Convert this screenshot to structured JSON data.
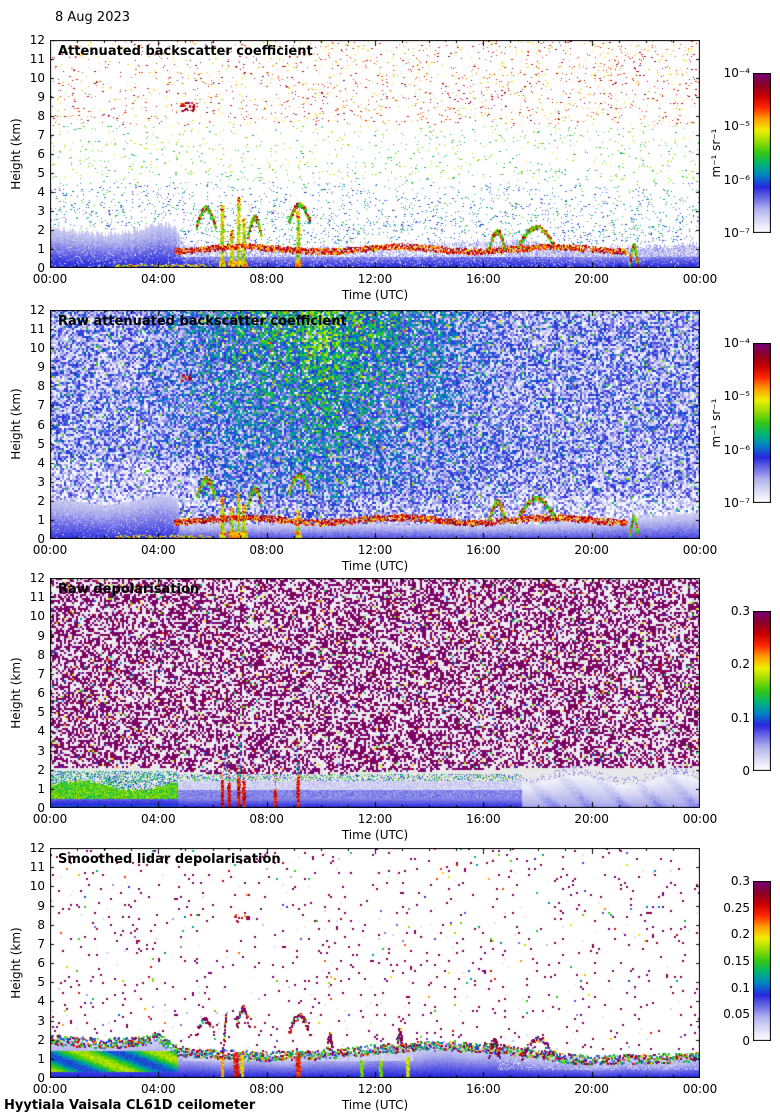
{
  "page": {
    "date": "8 Aug 2023",
    "footer": "Hyytiala Vaisala CL61D ceilometer"
  },
  "colors": {
    "colormap": [
      "#ffffff",
      "#dcdcf5",
      "#b4b4ee",
      "#6e6ee6",
      "#2828dc",
      "#0080c8",
      "#00b478",
      "#32c814",
      "#96dc00",
      "#f0f000",
      "#ffa000",
      "#ff2800",
      "#c80000",
      "#8c0028",
      "#780078"
    ],
    "axis": "#000000",
    "panel3_background": "#e8e8e8",
    "noise_purple": "#780078"
  },
  "chart_data": [
    {
      "type": "heatmap",
      "title": "Attenuated backscatter coefficient",
      "xlabel": "Time (UTC)",
      "ylabel": "Height (km)",
      "x_ticks": [
        "00:00",
        "04:00",
        "08:00",
        "12:00",
        "16:00",
        "20:00",
        "00:00"
      ],
      "x_range_hours": [
        0,
        24
      ],
      "y_ticks": [
        "12",
        "11",
        "10",
        "9",
        "8",
        "7",
        "6",
        "5",
        "4",
        "3",
        "2",
        "1",
        "0"
      ],
      "y_range_km": [
        0,
        12
      ],
      "colorbar": {
        "scale": "log",
        "unit": "m⁻¹ sr⁻¹",
        "tick_labels": [
          "10⁻⁴",
          "10⁻⁵",
          "10⁻⁶",
          "10⁻⁷"
        ],
        "min": "10⁻⁷",
        "max": "10⁻⁴"
      },
      "render_style": "sparse_backscatter",
      "features": {
        "boundary_layer_top_km": [
          [
            0,
            2.1
          ],
          [
            1,
            1.9
          ],
          [
            2,
            1.75
          ],
          [
            3,
            1.9
          ],
          [
            4,
            2.3
          ],
          [
            4.6,
            2.2
          ],
          [
            5,
            1.15
          ],
          [
            7,
            1.0
          ],
          [
            9,
            1.0
          ],
          [
            11,
            1.05
          ],
          [
            13,
            1.2
          ],
          [
            15,
            1.35
          ],
          [
            17,
            1.45
          ],
          [
            18,
            1.3
          ],
          [
            19,
            1.15
          ],
          [
            20,
            1.0
          ],
          [
            22,
            1.1
          ],
          [
            24,
            1.25
          ]
        ],
        "aerosol_layer": {
          "km": 1.0,
          "start_h": 4.6,
          "end_h": 21.3
        },
        "precip_streaks": [
          {
            "h": 6.35,
            "top_km": 3.3
          },
          {
            "h": 6.7,
            "top_km": 2.0
          },
          {
            "h": 6.95,
            "top_km": 3.7
          },
          {
            "h": 7.15,
            "top_km": 2.6
          },
          {
            "h": 9.15,
            "top_km": 3.0
          }
        ],
        "cloud_bands": [
          {
            "h0": 5.4,
            "h1": 6.1,
            "km": 3.1
          },
          {
            "h0": 7.3,
            "h1": 7.8,
            "km": 2.6
          },
          {
            "h0": 8.8,
            "h1": 9.6,
            "km": 3.3
          },
          {
            "h0": 16.2,
            "h1": 16.8,
            "km": 1.9
          },
          {
            "h0": 17.3,
            "h1": 18.6,
            "km": 2.1
          },
          {
            "h0": 21.4,
            "h1": 21.7,
            "km": 1.1
          }
        ],
        "cirrus_spot": {
          "h": 5.05,
          "km": 8.5
        }
      }
    },
    {
      "type": "heatmap",
      "title": "Raw attenuated backscatter coefficient",
      "xlabel": "Time (UTC)",
      "ylabel": "Height (km)",
      "x_ticks": [
        "00:00",
        "04:00",
        "08:00",
        "12:00",
        "16:00",
        "20:00",
        "00:00"
      ],
      "x_range_hours": [
        0,
        24
      ],
      "y_ticks": [
        "12",
        "11",
        "10",
        "9",
        "8",
        "7",
        "6",
        "5",
        "4",
        "3",
        "2",
        "1",
        "0"
      ],
      "y_range_km": [
        0,
        12
      ],
      "colorbar": {
        "scale": "log",
        "unit": "m⁻¹ sr⁻¹",
        "tick_labels": [
          "10⁻⁴",
          "10⁻⁵",
          "10⁻⁶",
          "10⁻⁷"
        ],
        "min": "10⁻⁷",
        "max": "10⁻⁴"
      },
      "render_style": "noisy_backscatter",
      "features": {
        "boundary_layer_top_km": [
          [
            0,
            2.1
          ],
          [
            1,
            1.9
          ],
          [
            2,
            1.75
          ],
          [
            3,
            1.9
          ],
          [
            4,
            2.3
          ],
          [
            4.6,
            2.2
          ],
          [
            5,
            1.15
          ],
          [
            7,
            1.0
          ],
          [
            9,
            1.0
          ],
          [
            11,
            1.05
          ],
          [
            13,
            1.2
          ],
          [
            15,
            1.35
          ],
          [
            17,
            1.45
          ],
          [
            18,
            1.3
          ],
          [
            19,
            1.15
          ],
          [
            20,
            1.0
          ],
          [
            22,
            1.1
          ],
          [
            24,
            1.25
          ]
        ],
        "ground_top_km": [
          [
            4.75,
            0.75
          ],
          [
            12,
            0.8
          ],
          [
            16,
            0.7
          ],
          [
            20,
            0.85
          ],
          [
            21.5,
            1.05
          ],
          [
            24,
            1.35
          ]
        ],
        "aerosol_layer": {
          "km": 1.0,
          "start_h": 4.6,
          "end_h": 21.3
        },
        "precip_streaks": [
          {
            "h": 6.35,
            "top_km": 2.2
          },
          {
            "h": 6.7,
            "top_km": 1.6
          },
          {
            "h": 6.95,
            "top_km": 2.4
          },
          {
            "h": 7.15,
            "top_km": 1.8
          },
          {
            "h": 9.15,
            "top_km": 1.5
          }
        ],
        "cloud_bands": [
          {
            "h0": 5.4,
            "h1": 6.1,
            "km": 3.1
          },
          {
            "h0": 7.3,
            "h1": 7.8,
            "km": 2.6
          },
          {
            "h0": 8.8,
            "h1": 9.6,
            "km": 3.3
          },
          {
            "h0": 16.2,
            "h1": 16.8,
            "km": 1.9
          },
          {
            "h0": 17.3,
            "h1": 18.6,
            "km": 2.1
          },
          {
            "h0": 21.4,
            "h1": 21.7,
            "km": 1.1
          }
        ],
        "cirrus_spot": {
          "h": 5.05,
          "km": 8.5
        }
      }
    },
    {
      "type": "heatmap",
      "title": "Raw depolarisation",
      "xlabel": "Time (UTC)",
      "ylabel": "Height (km)",
      "x_ticks": [
        "00:00",
        "04:00",
        "08:00",
        "12:00",
        "16:00",
        "20:00",
        "00:00"
      ],
      "x_range_hours": [
        0,
        24
      ],
      "y_ticks": [
        "12",
        "11",
        "10",
        "9",
        "8",
        "7",
        "6",
        "5",
        "4",
        "3",
        "2",
        "1",
        "0"
      ],
      "y_range_km": [
        0,
        12
      ],
      "colorbar": {
        "scale": "linear",
        "unit": "",
        "tick_labels": [
          "0.3",
          "0.2",
          "0.1",
          "0"
        ],
        "min": "0",
        "max": "0.3"
      },
      "render_style": "raw_depol",
      "features": {
        "surface_top_km": [
          [
            0,
            1.8
          ],
          [
            4,
            1.9
          ],
          [
            5,
            1.6
          ],
          [
            8,
            1.5
          ],
          [
            12,
            1.6
          ],
          [
            17,
            1.8
          ],
          [
            20,
            1.9
          ],
          [
            24,
            1.8
          ]
        ],
        "green_band_end_h": 4.7,
        "white_band_h": [
          4.7,
          17.4
        ],
        "smooth_start_h": 17.4,
        "red_streaks": [
          {
            "h": 6.35,
            "top_km": 1.45
          },
          {
            "h": 6.6,
            "top_km": 1.3
          },
          {
            "h": 6.95,
            "top_km": 1.55
          },
          {
            "h": 7.15,
            "top_km": 1.4
          },
          {
            "h": 8.3,
            "top_km": 0.9
          },
          {
            "h": 9.15,
            "top_km": 1.6
          }
        ]
      }
    },
    {
      "type": "heatmap",
      "title": "Smoothed lidar depolarisation",
      "xlabel": "Time (UTC)",
      "ylabel": "Height (km)",
      "x_ticks": [
        "00:00",
        "04:00",
        "08:00",
        "12:00",
        "16:00",
        "20:00",
        "00:00"
      ],
      "x_range_hours": [
        0,
        24
      ],
      "y_ticks": [
        "12",
        "11",
        "10",
        "9",
        "8",
        "7",
        "6",
        "5",
        "4",
        "3",
        "2",
        "1",
        "0"
      ],
      "y_range_km": [
        0,
        12
      ],
      "colorbar": {
        "scale": "linear",
        "unit": "",
        "tick_labels": [
          "0.3",
          "0.25",
          "0.2",
          "0.15",
          "0.1",
          "0.05",
          "0"
        ],
        "min": "0",
        "max": "0.3"
      },
      "render_style": "smooth_depol",
      "features": {
        "layer_top_km": [
          [
            0,
            2.0
          ],
          [
            1,
            1.9
          ],
          [
            2,
            1.8
          ],
          [
            3,
            1.9
          ],
          [
            4,
            2.1
          ],
          [
            4.8,
            1.35
          ],
          [
            6,
            1.25
          ],
          [
            8,
            1.15
          ],
          [
            10,
            1.25
          ],
          [
            12,
            1.5
          ],
          [
            13,
            1.6
          ],
          [
            14,
            1.7
          ],
          [
            16,
            1.6
          ],
          [
            18,
            1.3
          ],
          [
            19,
            1.05
          ],
          [
            20,
            0.95
          ],
          [
            22,
            1.0
          ],
          [
            24,
            1.1
          ]
        ],
        "green_band_end_h": 4.7,
        "lavender_band": {
          "h0": 4.9,
          "h1": 13.4,
          "km0": 0.92,
          "km1": 1.48
        },
        "cloud_outlines": [
          {
            "h0": 5.35,
            "h1": 6.1,
            "km": 3.0
          },
          {
            "h0": 6.35,
            "h1": 6.5,
            "km": 3.5,
            "kind": "column"
          },
          {
            "h0": 6.9,
            "h1": 7.35,
            "km": 3.6
          },
          {
            "h0": 8.8,
            "h1": 9.6,
            "km": 3.2
          },
          {
            "h0": 10.2,
            "h1": 10.45,
            "km": 2.2
          },
          {
            "h0": 12.8,
            "h1": 13.0,
            "km": 2.4
          },
          {
            "h0": 16.2,
            "h1": 16.6,
            "km": 1.9
          },
          {
            "h0": 17.4,
            "h1": 18.6,
            "km": 2.0
          }
        ],
        "streaks": [
          {
            "h": 6.35,
            "top_km": 1.0,
            "t": 0.7
          },
          {
            "h": 6.85,
            "top_km": 1.35,
            "t": 0.82,
            "w": 5
          },
          {
            "h": 7.08,
            "top_km": 1.2,
            "t": 0.66
          },
          {
            "h": 9.15,
            "top_km": 1.3,
            "t": 0.8,
            "w": 4
          },
          {
            "h": 11.5,
            "top_km": 0.9,
            "t": 0.55
          },
          {
            "h": 12.2,
            "top_km": 0.9,
            "t": 0.55
          },
          {
            "h": 13.2,
            "top_km": 1.1,
            "t": 0.62,
            "w": 3
          }
        ],
        "spot": {
          "h": 7.0,
          "km": 8.3
        }
      }
    }
  ]
}
